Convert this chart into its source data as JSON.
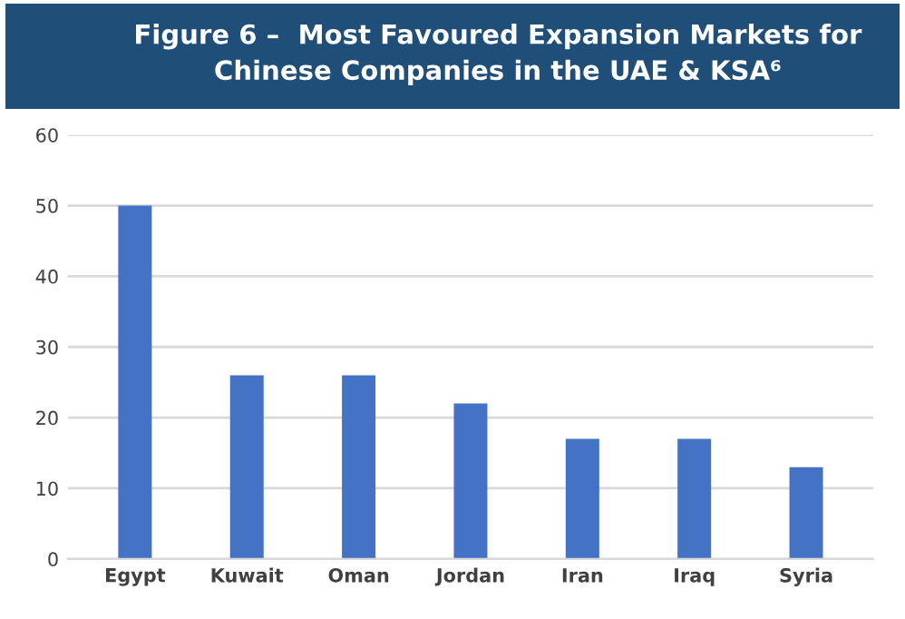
{
  "chart_data": {
    "type": "bar",
    "title": "Figure 6 –  Most Favoured Expansion Markets for\nChinese Companies in the UAE & KSA⁶",
    "categories": [
      "Egypt",
      "Kuwait",
      "Oman",
      "Jordan",
      "Iran",
      "Iraq",
      "Syria"
    ],
    "values": [
      50,
      26,
      26,
      22,
      17,
      17,
      13
    ],
    "color": "#4472c4",
    "ylim": [
      0,
      60
    ],
    "yticks": [
      0,
      10,
      20,
      30,
      40,
      50,
      60
    ],
    "grid": "y"
  }
}
